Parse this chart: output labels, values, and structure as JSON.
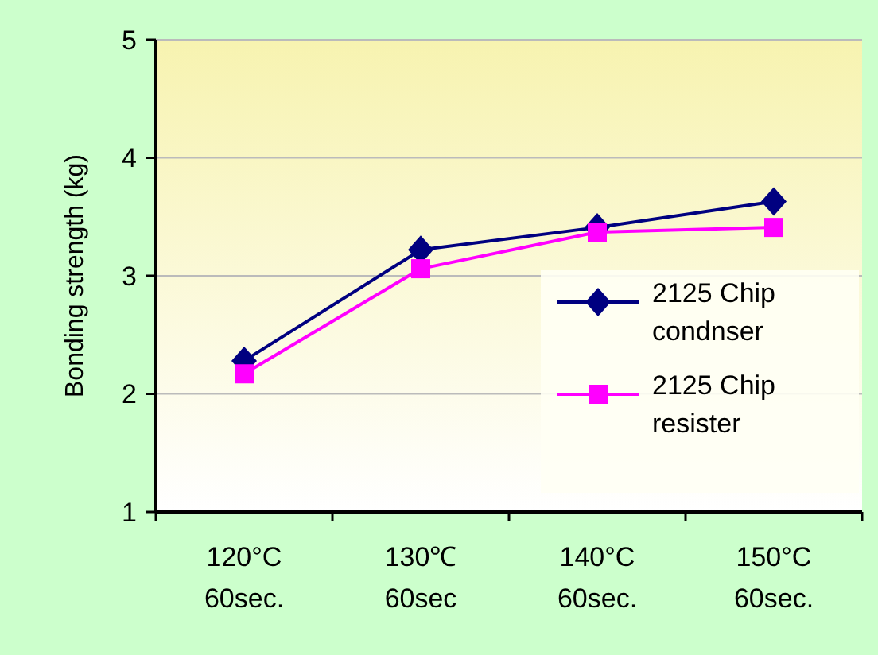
{
  "chart_data": {
    "type": "line",
    "ylabel": "Bonding strength (kg)",
    "categories": [
      "120°C\n60sec.",
      "130℃\n60sec",
      "140°C\n60sec.",
      "150°C\n60sec."
    ],
    "series": [
      {
        "name": "2125 Chip\ncondnser",
        "color": "#000080",
        "marker": "diamond",
        "values": [
          2.28,
          3.22,
          3.41,
          3.63
        ]
      },
      {
        "name": "2125 Chip\nresister",
        "color": "#ff00ff",
        "marker": "square",
        "values": [
          2.17,
          3.06,
          3.37,
          3.41
        ]
      }
    ],
    "ylim": [
      1,
      5
    ],
    "yticks": [
      1,
      2,
      3,
      4,
      5
    ],
    "grid": "y",
    "legend": "right",
    "line_style": "solid"
  }
}
